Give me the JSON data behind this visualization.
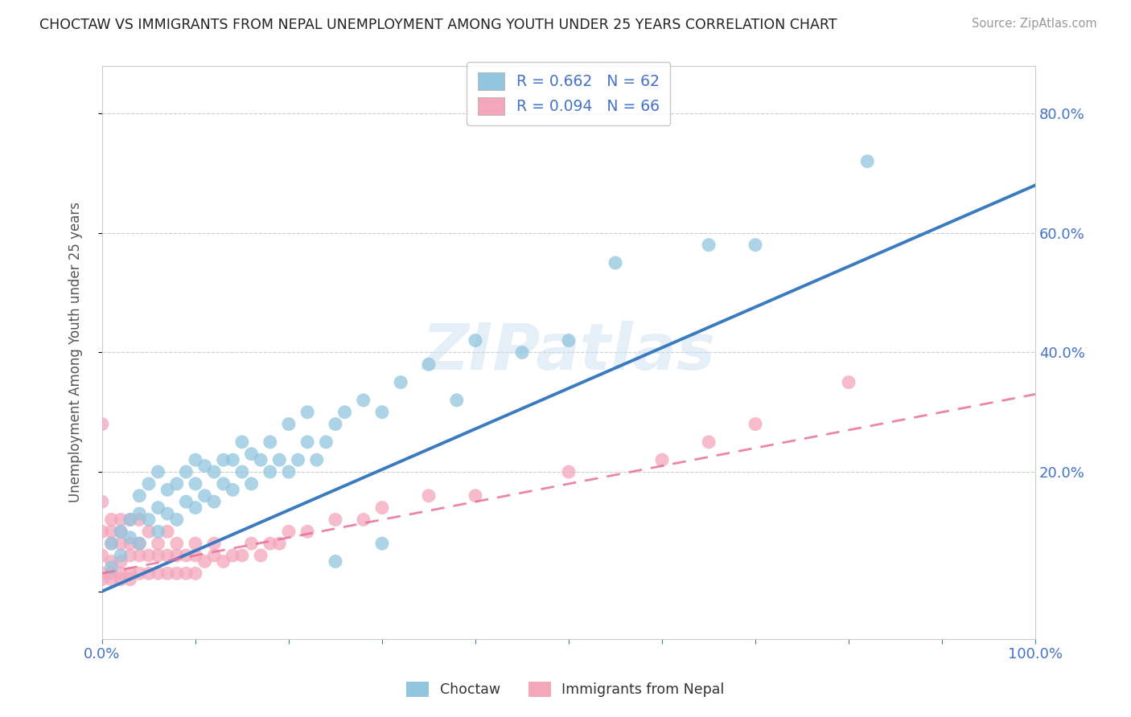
{
  "title": "CHOCTAW VS IMMIGRANTS FROM NEPAL UNEMPLOYMENT AMONG YOUTH UNDER 25 YEARS CORRELATION CHART",
  "source": "Source: ZipAtlas.com",
  "ylabel": "Unemployment Among Youth under 25 years",
  "xlim": [
    0,
    1.0
  ],
  "ylim": [
    -0.08,
    0.88
  ],
  "legend_blue_r": "R = 0.662",
  "legend_blue_n": "N = 62",
  "legend_pink_r": "R = 0.094",
  "legend_pink_n": "N = 66",
  "blue_color": "#92c5de",
  "pink_color": "#f4a6bb",
  "blue_line_color": "#3a7abf",
  "pink_line_color": "#e8709a",
  "watermark": "ZIPatlas",
  "blue_line_x0": 0.0,
  "blue_line_y0": 0.0,
  "blue_line_x1": 1.0,
  "blue_line_y1": 0.68,
  "pink_line_x0": 0.0,
  "pink_line_y0": 0.03,
  "pink_line_x1": 1.0,
  "pink_line_y1": 0.33,
  "blue_scatter_x": [
    0.01,
    0.01,
    0.02,
    0.02,
    0.03,
    0.03,
    0.04,
    0.04,
    0.04,
    0.05,
    0.05,
    0.06,
    0.06,
    0.06,
    0.07,
    0.07,
    0.08,
    0.08,
    0.09,
    0.09,
    0.1,
    0.1,
    0.1,
    0.11,
    0.11,
    0.12,
    0.12,
    0.13,
    0.13,
    0.14,
    0.14,
    0.15,
    0.15,
    0.16,
    0.16,
    0.17,
    0.18,
    0.18,
    0.19,
    0.2,
    0.2,
    0.21,
    0.22,
    0.22,
    0.23,
    0.24,
    0.25,
    0.26,
    0.28,
    0.3,
    0.32,
    0.35,
    0.38,
    0.4,
    0.45,
    0.5,
    0.55,
    0.65,
    0.7,
    0.82,
    0.25,
    0.3
  ],
  "blue_scatter_y": [
    0.04,
    0.08,
    0.06,
    0.1,
    0.09,
    0.12,
    0.08,
    0.13,
    0.16,
    0.12,
    0.18,
    0.1,
    0.14,
    0.2,
    0.13,
    0.17,
    0.12,
    0.18,
    0.15,
    0.2,
    0.14,
    0.18,
    0.22,
    0.16,
    0.21,
    0.15,
    0.2,
    0.18,
    0.22,
    0.17,
    0.22,
    0.2,
    0.25,
    0.18,
    0.23,
    0.22,
    0.2,
    0.25,
    0.22,
    0.2,
    0.28,
    0.22,
    0.25,
    0.3,
    0.22,
    0.25,
    0.28,
    0.3,
    0.32,
    0.3,
    0.35,
    0.38,
    0.32,
    0.42,
    0.4,
    0.42,
    0.55,
    0.58,
    0.58,
    0.72,
    0.05,
    0.08
  ],
  "pink_scatter_x": [
    0.0,
    0.0,
    0.0,
    0.0,
    0.0,
    0.01,
    0.01,
    0.01,
    0.01,
    0.01,
    0.02,
    0.02,
    0.02,
    0.02,
    0.02,
    0.03,
    0.03,
    0.03,
    0.03,
    0.04,
    0.04,
    0.04,
    0.04,
    0.05,
    0.05,
    0.05,
    0.06,
    0.06,
    0.06,
    0.07,
    0.07,
    0.07,
    0.08,
    0.08,
    0.08,
    0.09,
    0.09,
    0.1,
    0.1,
    0.1,
    0.11,
    0.12,
    0.12,
    0.13,
    0.14,
    0.15,
    0.16,
    0.17,
    0.18,
    0.19,
    0.2,
    0.22,
    0.25,
    0.28,
    0.3,
    0.35,
    0.4,
    0.5,
    0.6,
    0.65,
    0.7,
    0.0,
    0.01,
    0.02,
    0.03,
    0.8
  ],
  "pink_scatter_y": [
    0.03,
    0.06,
    0.1,
    0.15,
    0.28,
    0.03,
    0.05,
    0.08,
    0.1,
    0.12,
    0.03,
    0.05,
    0.08,
    0.1,
    0.12,
    0.03,
    0.06,
    0.08,
    0.12,
    0.03,
    0.06,
    0.08,
    0.12,
    0.03,
    0.06,
    0.1,
    0.03,
    0.06,
    0.08,
    0.03,
    0.06,
    0.1,
    0.03,
    0.06,
    0.08,
    0.03,
    0.06,
    0.03,
    0.06,
    0.08,
    0.05,
    0.06,
    0.08,
    0.05,
    0.06,
    0.06,
    0.08,
    0.06,
    0.08,
    0.08,
    0.1,
    0.1,
    0.12,
    0.12,
    0.14,
    0.16,
    0.16,
    0.2,
    0.22,
    0.25,
    0.28,
    0.02,
    0.02,
    0.02,
    0.02,
    0.35
  ]
}
